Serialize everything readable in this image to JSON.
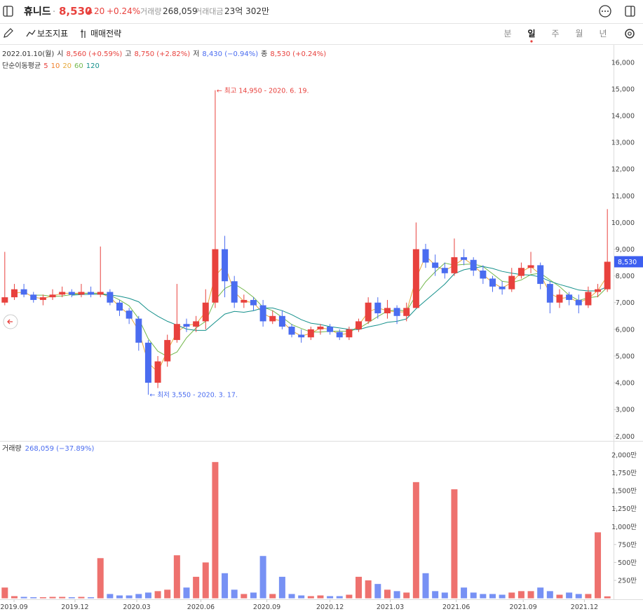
{
  "header": {
    "name": "휴니드",
    "price": "8,530",
    "change": "20",
    "change_pct": "+0.24%",
    "volume_label": "거래량",
    "volume": "268,059",
    "amount_label": "거래대금",
    "amount": "23억 302만"
  },
  "toolbar": {
    "indicators": "보조지표",
    "strategy": "매매전략",
    "periods": [
      "분",
      "일",
      "주",
      "월",
      "년"
    ],
    "active_period": 1
  },
  "chart_data": [
    {
      "type": "candlestick",
      "date": "2022.01.10(월)",
      "ohlc_info": [
        {
          "label": "시",
          "value": "8,560 (+0.59%)"
        },
        {
          "label": "고",
          "value": "8,750 (+2.82%)"
        },
        {
          "label": "저",
          "value": "8,430 (−0.94%)"
        },
        {
          "label": "종",
          "value": "8,530 (+0.24%)"
        }
      ],
      "ma_title": "단순이동평균",
      "ma_legend": [
        {
          "name": "5",
          "color": "#e8413d"
        },
        {
          "name": "10",
          "color": "#f07f2a"
        },
        {
          "name": "20",
          "color": "#e6a93a"
        },
        {
          "name": "60",
          "color": "#74b84d"
        },
        {
          "name": "120",
          "color": "#14908b"
        }
      ],
      "xlim": [
        -0.5,
        63.5
      ],
      "xticks": [
        {
          "value": 0.97,
          "label": "2019.09"
        },
        {
          "value": 7.34,
          "label": "2019.12"
        },
        {
          "value": 13.8,
          "label": "2020.03"
        },
        {
          "value": 20.5,
          "label": "2020.06"
        },
        {
          "value": 27.4,
          "label": "2020.09"
        },
        {
          "value": 34,
          "label": "2020.12"
        },
        {
          "value": 40.3,
          "label": "2021.03"
        },
        {
          "value": 47.2,
          "label": "2021.06"
        },
        {
          "value": 54.2,
          "label": "2021.09"
        },
        {
          "value": 60.6,
          "label": "2021.12"
        }
      ],
      "ylim": [
        1850,
        16650
      ],
      "yticks": [
        {
          "value": 2000,
          "label": "2,000"
        },
        {
          "value": 3000,
          "label": "3,000"
        },
        {
          "value": 4000,
          "label": "4,000"
        },
        {
          "value": 5000,
          "label": "5,000"
        },
        {
          "value": 6000,
          "label": "6,000"
        },
        {
          "value": 7000,
          "label": "7,000"
        },
        {
          "value": 8000,
          "label": "8,000"
        },
        {
          "value": 9000,
          "label": "9,000"
        },
        {
          "value": 10000,
          "label": "10,000"
        },
        {
          "value": 11000,
          "label": "11,000"
        },
        {
          "value": 12000,
          "label": "12,000"
        },
        {
          "value": 13000,
          "label": "13,000"
        },
        {
          "value": 14000,
          "label": "14,000"
        },
        {
          "value": 15000,
          "label": "15,000"
        },
        {
          "value": 16000,
          "label": "16,000"
        }
      ],
      "up_color": "#e8413d",
      "down_color": "#4a6cf0",
      "open": [
        7000,
        7200,
        7500,
        7300,
        7100,
        7200,
        7300,
        7400,
        7300,
        7400,
        7300,
        7400,
        7000,
        6700,
        6400,
        5500,
        4000,
        4800,
        5600,
        6200,
        6100,
        6300,
        7000,
        9000,
        7800,
        7000,
        7100,
        6900,
        6300,
        6500,
        6100,
        5800,
        5700,
        6000,
        6100,
        5900,
        5700,
        6000,
        6300,
        7000,
        6600,
        6800,
        6500,
        6800,
        9000,
        8500,
        8300,
        8100,
        8700,
        8600,
        8200,
        7900,
        7600,
        7500,
        8000,
        8300,
        8400,
        7700,
        7000,
        7300,
        7100,
        6900,
        7400,
        7500
      ],
      "high": [
        8900,
        7700,
        7700,
        7400,
        7300,
        7500,
        7600,
        7500,
        7700,
        7600,
        9100,
        7500,
        7100,
        6800,
        6500,
        5600,
        5000,
        5800,
        7700,
        6400,
        6500,
        7500,
        14950,
        9500,
        8000,
        7300,
        7200,
        7100,
        6700,
        6700,
        6200,
        6000,
        6100,
        6200,
        6200,
        6000,
        6100,
        6400,
        7200,
        7200,
        7100,
        6900,
        7000,
        10000,
        9200,
        8800,
        8500,
        9400,
        9000,
        8700,
        8400,
        8000,
        7800,
        8300,
        8500,
        8900,
        8500,
        7800,
        7500,
        7400,
        7300,
        7600,
        7700,
        10500
      ],
      "low": [
        6900,
        7100,
        7200,
        7000,
        6900,
        7100,
        7200,
        7200,
        7200,
        7200,
        7200,
        6900,
        6500,
        6200,
        5200,
        3550,
        3800,
        4600,
        5500,
        5900,
        5900,
        6000,
        6800,
        7200,
        6800,
        6800,
        6700,
        6100,
        6200,
        6000,
        5700,
        5500,
        5600,
        5800,
        5800,
        5600,
        5600,
        5900,
        6200,
        6400,
        6400,
        6200,
        6300,
        6800,
        8300,
        8000,
        7900,
        8000,
        8400,
        8000,
        7700,
        7400,
        7300,
        7400,
        7900,
        8100,
        7500,
        6600,
        6800,
        6900,
        6600,
        6800,
        7200,
        7400
      ],
      "close": [
        7200,
        7500,
        7300,
        7100,
        7200,
        7300,
        7400,
        7300,
        7400,
        7300,
        7400,
        7000,
        6700,
        6400,
        5500,
        4000,
        4800,
        5600,
        6200,
        6100,
        6300,
        7000,
        9000,
        7800,
        7000,
        7100,
        6900,
        6300,
        6500,
        6100,
        5800,
        5700,
        6000,
        6100,
        5900,
        5700,
        6000,
        6300,
        7000,
        6600,
        6800,
        6500,
        6800,
        9000,
        8500,
        8300,
        8100,
        8700,
        8600,
        8200,
        7900,
        7600,
        7500,
        8000,
        8300,
        8400,
        7700,
        7000,
        7300,
        7100,
        6900,
        7400,
        7500,
        8530
      ],
      "ma_lines": [
        {
          "color": "#e6a93a",
          "values": [
            null,
            7350,
            7400,
            7200,
            7150,
            7250,
            7350,
            7350,
            7350,
            7350,
            7350,
            7200,
            6850,
            6550,
            5950,
            4750,
            4400,
            5200,
            5900,
            6150,
            6200,
            6650,
            8000,
            8400,
            7400,
            7050,
            7000,
            6600,
            6400,
            6300,
            5950,
            5750,
            5850,
            6050,
            6000,
            5800,
            5850,
            6150,
            6650,
            6800,
            6700,
            6650,
            6650,
            7900,
            8750,
            8400,
            8200,
            8400,
            8650,
            8400,
            8050,
            7750,
            7550,
            7750,
            8150,
            8350,
            8050,
            7350,
            7150,
            7200,
            7000,
            7150,
            7450,
            8000
          ]
        },
        {
          "color": "#74b84d",
          "values": [
            null,
            null,
            null,
            7280,
            7280,
            7230,
            7250,
            7300,
            7350,
            7350,
            7350,
            7280,
            7100,
            6880,
            6400,
            5650,
            5180,
            4980,
            5150,
            5680,
            6050,
            6300,
            7100,
            7530,
            7700,
            7480,
            7200,
            6830,
            6700,
            6450,
            6180,
            6030,
            5900,
            5900,
            5930,
            5930,
            5930,
            6030,
            6250,
            6480,
            6680,
            6730,
            6680,
            7280,
            7780,
            8150,
            8480,
            8400,
            8430,
            8450,
            8350,
            8080,
            7800,
            7750,
            7850,
            8050,
            8100,
            7850,
            7600,
            7280,
            7080,
            7180,
            7230,
            7580
          ]
        },
        {
          "color": "#14908b",
          "values": [
            null,
            null,
            null,
            null,
            null,
            null,
            null,
            7280,
            7300,
            7310,
            7310,
            7290,
            7240,
            7160,
            7030,
            6720,
            6490,
            6300,
            6160,
            6010,
            5960,
            5960,
            6270,
            6570,
            6670,
            6640,
            6700,
            6800,
            6800,
            6700,
            6550,
            6360,
            6230,
            6180,
            6100,
            6050,
            6000,
            5990,
            6090,
            6160,
            6260,
            6300,
            6390,
            6770,
            7080,
            7380,
            7690,
            8080,
            8230,
            8300,
            8350,
            8280,
            8170,
            8100,
            8050,
            8030,
            7960,
            7800,
            7680,
            7580,
            7470,
            7440,
            7440,
            7600
          ]
        }
      ],
      "annotations": [
        {
          "text": "← 최고 14,950 - 2020. 6. 19.",
          "x": 22,
          "y": 14950,
          "color": "#e8413d"
        },
        {
          "text": "← 최저 3,550 - 2020. 3. 17.",
          "x": 15,
          "y": 3550,
          "color": "#4a6cf0"
        }
      ],
      "last_price": {
        "value": 8530,
        "label": "8,530"
      }
    },
    {
      "type": "bar",
      "title": "거래량",
      "subtitle": "268,059 (−37.89%)",
      "ylim": [
        0,
        2160
      ],
      "yticks": [
        {
          "value": 250,
          "label": "250만"
        },
        {
          "value": 500,
          "label": "500만"
        },
        {
          "value": 750,
          "label": "750만"
        },
        {
          "value": 1000,
          "label": "1,000만"
        },
        {
          "value": 1250,
          "label": "1,250만"
        },
        {
          "value": 1500,
          "label": "1,500만"
        },
        {
          "value": 1750,
          "label": "1,750만"
        },
        {
          "value": 2000,
          "label": "2,000만"
        }
      ],
      "values": [
        150,
        30,
        20,
        15,
        15,
        20,
        20,
        15,
        20,
        15,
        560,
        60,
        40,
        40,
        60,
        80,
        100,
        120,
        600,
        150,
        300,
        500,
        1900,
        350,
        120,
        60,
        80,
        590,
        60,
        300,
        60,
        40,
        30,
        40,
        30,
        30,
        50,
        300,
        250,
        200,
        120,
        100,
        80,
        1620,
        350,
        100,
        80,
        1520,
        150,
        80,
        60,
        60,
        50,
        80,
        100,
        100,
        150,
        100,
        50,
        80,
        60,
        60,
        920,
        27
      ]
    }
  ]
}
